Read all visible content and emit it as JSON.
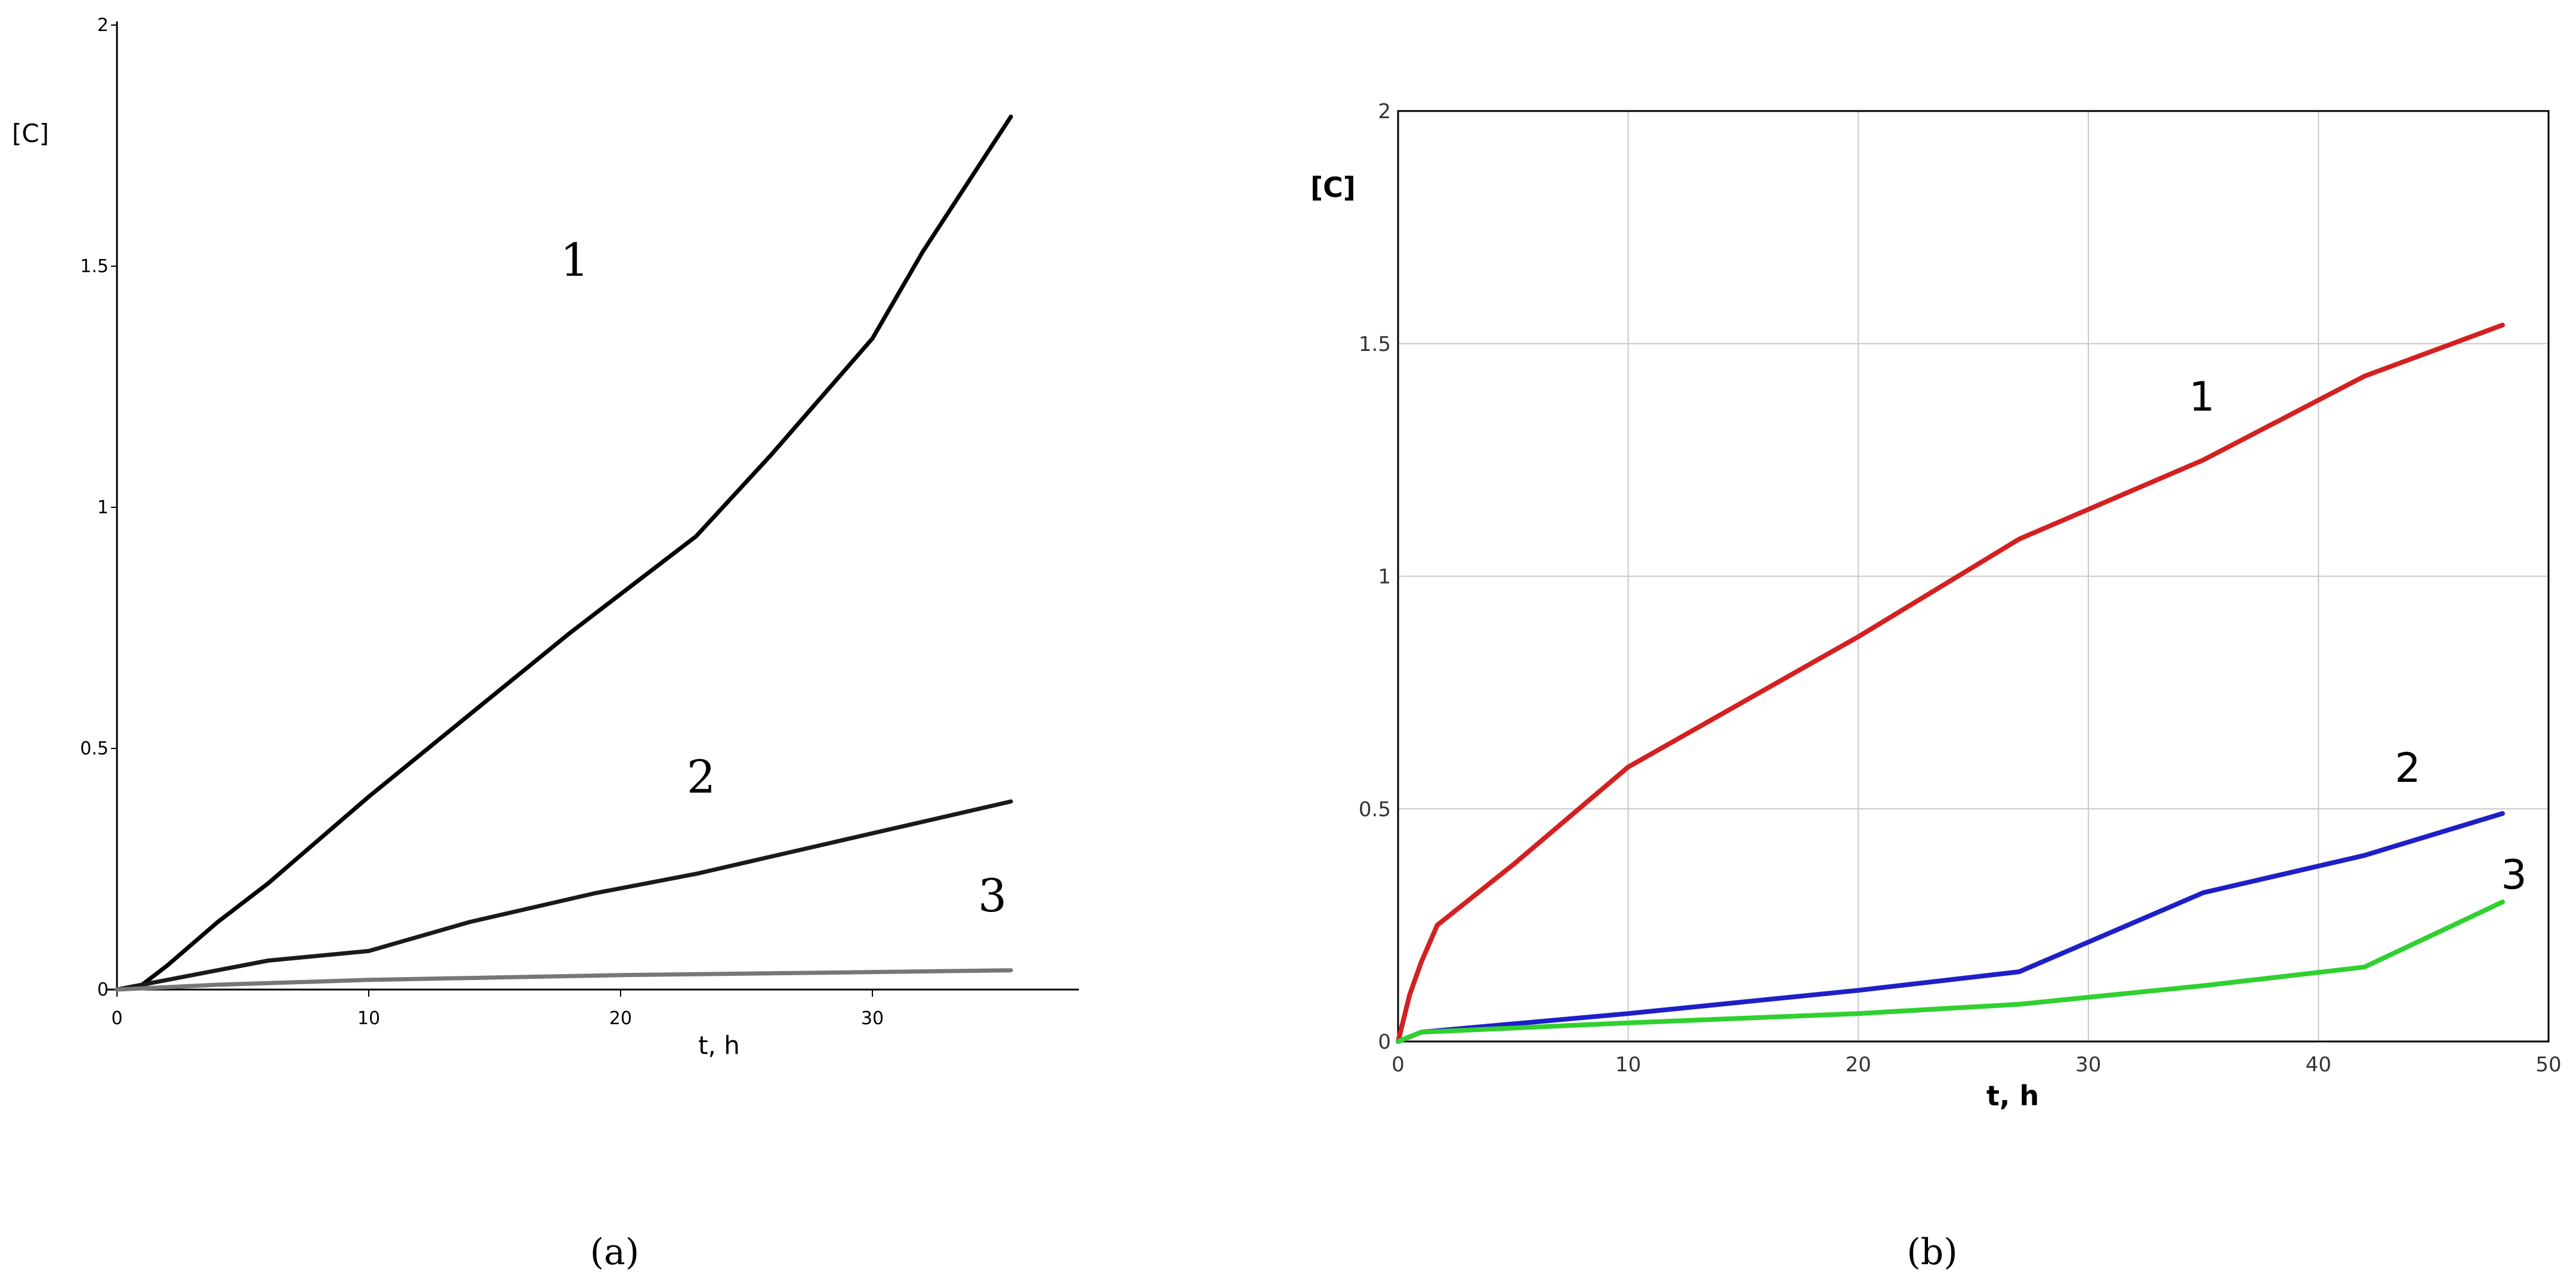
{
  "chart_data": [
    {
      "type": "line",
      "caption": "(a)",
      "ylabel": "[C]",
      "xlabel": "t, h",
      "xlim": [
        0,
        38
      ],
      "ylim": [
        0,
        2
      ],
      "xticks": [
        "0",
        "10",
        "20",
        "30"
      ],
      "yticks": [
        "0",
        "0.5",
        "1",
        "1.5",
        "2"
      ],
      "grid": false,
      "series": [
        {
          "name": "1",
          "color": "#000000",
          "x": [
            0,
            1,
            2,
            4,
            6,
            8,
            10,
            14,
            18,
            23,
            26,
            30,
            32,
            35.5
          ],
          "y": [
            0,
            0.01,
            0.05,
            0.14,
            0.22,
            0.31,
            0.4,
            0.57,
            0.74,
            0.94,
            1.11,
            1.35,
            1.53,
            1.81
          ]
        },
        {
          "name": "2",
          "color": "#1a1a1a",
          "x": [
            0,
            2,
            6,
            10,
            14,
            19,
            23,
            28,
            35.5
          ],
          "y": [
            0,
            0.02,
            0.06,
            0.08,
            0.14,
            0.2,
            0.24,
            0.3,
            0.39
          ]
        },
        {
          "name": "3",
          "color": "#777777",
          "x": [
            0,
            4,
            10,
            20,
            28,
            35.5
          ],
          "y": [
            0,
            0.01,
            0.02,
            0.03,
            0.035,
            0.04
          ]
        }
      ]
    },
    {
      "type": "line",
      "caption": "(b)",
      "ylabel": "[C]",
      "xlabel": "t, h",
      "xlim": [
        0,
        50
      ],
      "ylim": [
        0,
        2
      ],
      "xticks": [
        "0",
        "10",
        "20",
        "30",
        "40",
        "50"
      ],
      "yticks": [
        "0",
        "0.5",
        "1",
        "1.5",
        "2"
      ],
      "grid": true,
      "series": [
        {
          "name": "1",
          "color": "#d42020",
          "x": [
            0,
            0.5,
            1,
            1.7,
            5,
            10,
            20,
            27,
            35,
            42,
            48
          ],
          "y": [
            0,
            0.1,
            0.17,
            0.25,
            0.38,
            0.59,
            0.87,
            1.08,
            1.25,
            1.43,
            1.54
          ]
        },
        {
          "name": "2",
          "color": "#1f1fc8",
          "x": [
            0,
            1,
            10,
            20,
            27,
            35,
            42,
            48
          ],
          "y": [
            0,
            0.02,
            0.06,
            0.11,
            0.15,
            0.32,
            0.4,
            0.49
          ]
        },
        {
          "name": "3",
          "color": "#30d030",
          "x": [
            0,
            1,
            10,
            20,
            27,
            35,
            42,
            48
          ],
          "y": [
            0,
            0.02,
            0.04,
            0.06,
            0.08,
            0.12,
            0.16,
            0.3
          ]
        }
      ]
    }
  ]
}
